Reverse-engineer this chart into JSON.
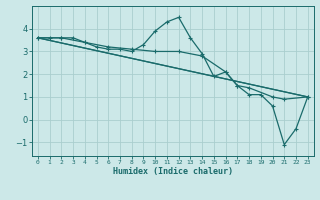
{
  "title": "",
  "xlabel": "Humidex (Indice chaleur)",
  "bg_color": "#cce8e8",
  "line_color": "#1a6b6b",
  "grid_color": "#aacece",
  "xlim": [
    -0.5,
    23.5
  ],
  "ylim": [
    -1.6,
    5.0
  ],
  "yticks": [
    -1,
    0,
    1,
    2,
    3,
    4
  ],
  "xticks": [
    0,
    1,
    2,
    3,
    4,
    5,
    6,
    7,
    8,
    9,
    10,
    11,
    12,
    13,
    14,
    15,
    16,
    17,
    18,
    19,
    20,
    21,
    22,
    23
  ],
  "series1": [
    [
      0,
      3.6
    ],
    [
      1,
      3.6
    ],
    [
      2,
      3.6
    ],
    [
      3,
      3.6
    ],
    [
      4,
      3.4
    ],
    [
      5,
      3.2
    ],
    [
      6,
      3.1
    ],
    [
      7,
      3.1
    ],
    [
      8,
      3.0
    ],
    [
      9,
      3.3
    ],
    [
      10,
      3.9
    ],
    [
      11,
      4.3
    ],
    [
      12,
      4.5
    ],
    [
      13,
      3.6
    ],
    [
      14,
      2.9
    ],
    [
      15,
      1.9
    ],
    [
      16,
      2.1
    ],
    [
      17,
      1.5
    ],
    [
      18,
      1.1
    ],
    [
      19,
      1.1
    ],
    [
      20,
      0.6
    ],
    [
      21,
      -1.1
    ],
    [
      22,
      -0.4
    ],
    [
      23,
      1.0
    ]
  ],
  "series2": [
    [
      0,
      3.6
    ],
    [
      2,
      3.6
    ],
    [
      4,
      3.4
    ],
    [
      6,
      3.2
    ],
    [
      8,
      3.1
    ],
    [
      10,
      3.0
    ],
    [
      12,
      3.0
    ],
    [
      14,
      2.8
    ],
    [
      16,
      2.1
    ],
    [
      17,
      1.5
    ],
    [
      18,
      1.4
    ],
    [
      20,
      1.0
    ],
    [
      21,
      0.9
    ],
    [
      23,
      1.0
    ]
  ],
  "series3": [
    [
      0,
      3.6
    ],
    [
      23,
      1.0
    ]
  ],
  "series4": [
    [
      0,
      3.6
    ],
    [
      23,
      1.0
    ]
  ],
  "xlabel_fontsize": 6.0,
  "xtick_fontsize": 4.5,
  "ytick_fontsize": 6.0,
  "lw": 0.9,
  "marker_size": 2.5
}
